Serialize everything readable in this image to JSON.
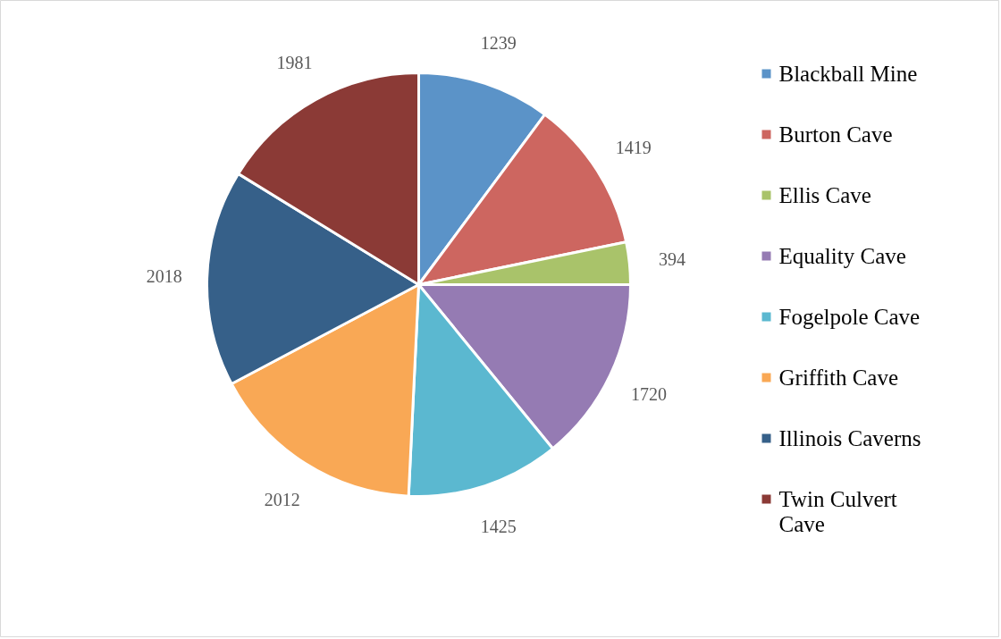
{
  "chart_data": {
    "type": "pie",
    "categories": [
      "Blackball Mine",
      "Burton Cave",
      "Ellis Cave",
      "Equality Cave",
      "Fogelpole Cave",
      "Griffith Cave",
      "Illinois Caverns",
      "Twin Culvert Cave"
    ],
    "values": [
      1239,
      1419,
      394,
      1720,
      1425,
      2012,
      2018,
      1981
    ],
    "colors": [
      "#5b93c8",
      "#cd6660",
      "#a9c36a",
      "#957bb3",
      "#5bb8d0",
      "#f9a855",
      "#366089",
      "#8b3a36"
    ],
    "data_labels": true,
    "legend": "right"
  }
}
